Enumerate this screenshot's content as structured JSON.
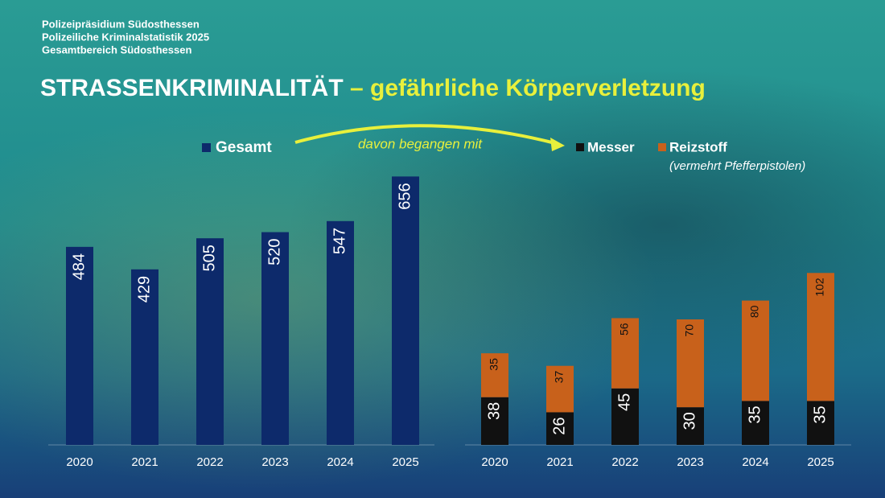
{
  "header": {
    "lines": [
      "Polizeipräsidium Südosthessen",
      "Polizeiliche Kriminalstatistik 2025",
      "Gesamtbereich Südosthessen"
    ],
    "title_main": "STRASSENKRIMINALITÄT",
    "title_sub": "– gefährliche Körperverletzung"
  },
  "chart_data": [
    {
      "type": "bar",
      "categories": [
        "2020",
        "2021",
        "2022",
        "2023",
        "2024",
        "2025"
      ],
      "series": [
        {
          "name": "Gesamt",
          "color": "#0d2a6b",
          "values": [
            484,
            429,
            505,
            520,
            547,
            656
          ]
        }
      ],
      "ylim": [
        0,
        700
      ]
    },
    {
      "type": "stacked-bar",
      "categories": [
        "2020",
        "2021",
        "2022",
        "2023",
        "2024",
        "2025"
      ],
      "annotation": "davon begangen mit",
      "subtitle": "(vermehrt Pfefferpistolen)",
      "series": [
        {
          "name": "Messer",
          "color": "#111111",
          "values": [
            38,
            26,
            45,
            30,
            35,
            35
          ]
        },
        {
          "name": "Reizstoff",
          "color": "#c8611b",
          "values": [
            35,
            37,
            56,
            70,
            80,
            102
          ]
        }
      ],
      "ylim": [
        0,
        150
      ]
    }
  ]
}
